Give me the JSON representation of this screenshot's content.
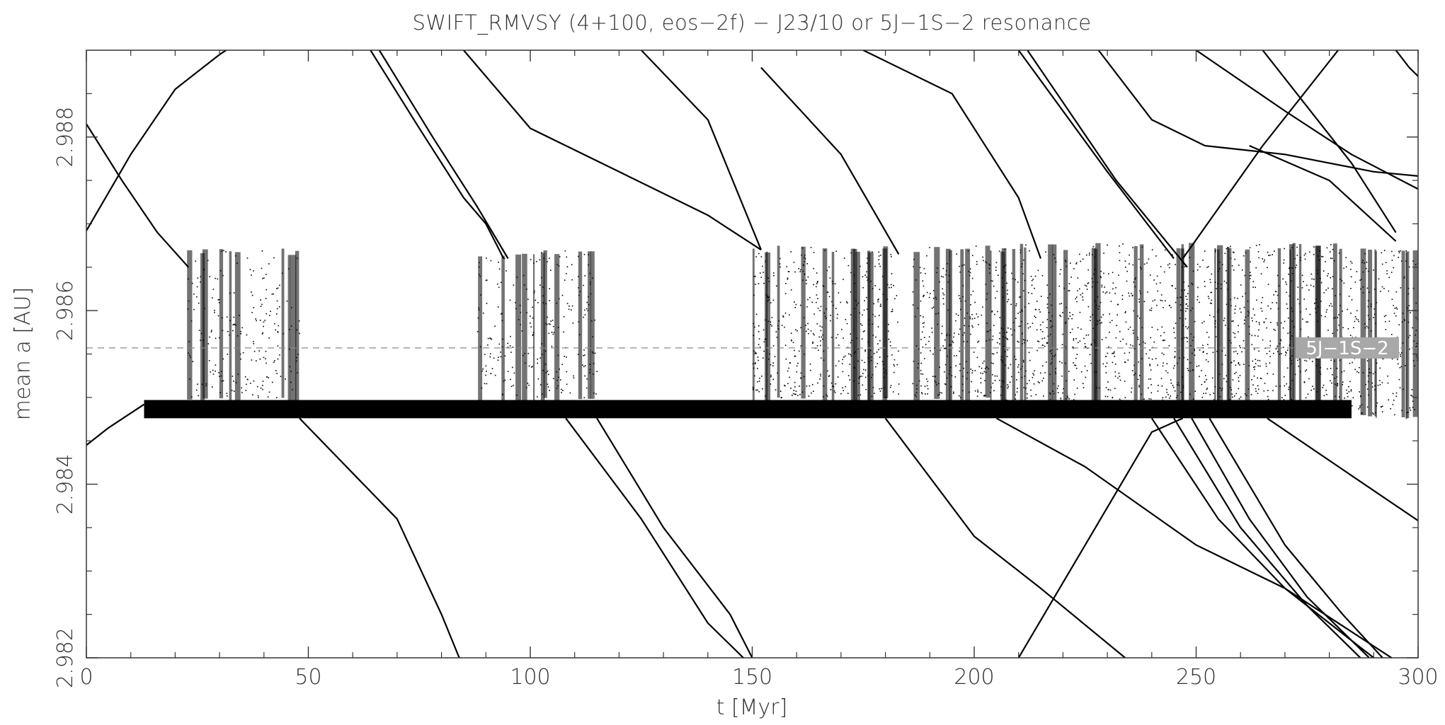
{
  "chart_data": {
    "type": "line",
    "title": "SWIFT_RMVSY (4+100, eos−2f) − J23/10 or 5J−1S−2 resonance",
    "xlabel": "t [Myr]",
    "ylabel": "mean a [AU]",
    "xlim": [
      0,
      300
    ],
    "ylim": [
      2.982,
      2.989
    ],
    "x_ticks": [
      0,
      50,
      100,
      150,
      200,
      250,
      300
    ],
    "x_tick_labels": [
      "0",
      "50",
      "100",
      "150",
      "200",
      "250",
      "300"
    ],
    "y_ticks": [
      2.982,
      2.984,
      2.986,
      2.988
    ],
    "y_tick_labels": [
      "2.982",
      "2.984",
      "2.986",
      "2.988"
    ],
    "grid": false,
    "legend": "none",
    "ink_color": "#000000",
    "resonance": {
      "label": "5J−1S−2",
      "a": 2.98557,
      "label_bg": "#a8a8a8"
    },
    "band": {
      "x_start": 13,
      "x_end": 285,
      "y_low": 2.98476,
      "y_high": 2.98497
    },
    "chaotic_zones": [
      {
        "x0": 22.5,
        "x1": 48,
        "y_top": 2.98672,
        "y_bottom": 2.985,
        "density": 0.45,
        "spikes": 10
      },
      {
        "x0": 88,
        "x1": 115,
        "y_top": 2.9867,
        "y_bottom": 2.985,
        "density": 0.5,
        "spikes": 11
      },
      {
        "x0": 150,
        "x1": 183,
        "y_top": 2.98675,
        "y_bottom": 2.985,
        "density": 0.75,
        "spikes": 14
      },
      {
        "x0": 186,
        "x1": 207,
        "y_top": 2.98675,
        "y_bottom": 2.985,
        "density": 0.8,
        "spikes": 10
      },
      {
        "x0": 207,
        "x1": 285,
        "y_top": 2.98678,
        "y_bottom": 2.9849,
        "density": 0.85,
        "spikes": 30
      },
      {
        "x0": 285,
        "x1": 300,
        "y_top": 2.98672,
        "y_bottom": 2.9848,
        "density": 0.8,
        "spikes": 8
      }
    ],
    "series": [
      {
        "x": [
          0,
          5,
          13
        ],
        "y": [
          2.98445,
          2.98465,
          2.98492
        ]
      },
      {
        "x": [
          0,
          10,
          20,
          30,
          31.5
        ],
        "y": [
          2.98692,
          2.9878,
          2.98855,
          2.98895,
          2.989
        ]
      },
      {
        "x": [
          0,
          8,
          16,
          23
        ],
        "y": [
          2.98815,
          2.9875,
          2.9869,
          2.9865
        ]
      },
      {
        "x": [
          48,
          70,
          80,
          84
        ],
        "y": [
          2.98476,
          2.9836,
          2.9825,
          2.982
        ]
      },
      {
        "x": [
          64,
          75,
          85,
          90,
          94
        ],
        "y": [
          2.989,
          2.9881,
          2.9873,
          2.987,
          2.9866
        ]
      },
      {
        "x": [
          66,
          78,
          88,
          95
        ],
        "y": [
          2.989,
          2.988,
          2.9872,
          2.9866
        ]
      },
      {
        "x": [
          85,
          100,
          120,
          140,
          152
        ],
        "y": [
          2.989,
          2.9881,
          2.9876,
          2.9871,
          2.9867
        ]
      },
      {
        "x": [
          125,
          140,
          152
        ],
        "y": [
          2.989,
          2.9882,
          2.9867
        ]
      },
      {
        "x": [
          108,
          125,
          140,
          148
        ],
        "y": [
          2.98476,
          2.9836,
          2.9824,
          2.982
        ]
      },
      {
        "x": [
          115,
          130,
          145,
          150
        ],
        "y": [
          2.98476,
          2.9835,
          2.9825,
          2.982
        ]
      },
      {
        "x": [
          152,
          170,
          183
        ],
        "y": [
          2.9888,
          2.9878,
          2.98665
        ]
      },
      {
        "x": [
          175,
          195,
          210,
          215
        ],
        "y": [
          2.989,
          2.9885,
          2.9873,
          2.9866
        ]
      },
      {
        "x": [
          180,
          200,
          215,
          234
        ],
        "y": [
          2.98476,
          2.9834,
          2.9828,
          2.982
        ]
      },
      {
        "x": [
          205,
          225,
          250,
          270,
          300
        ],
        "y": [
          2.98476,
          2.9842,
          2.9833,
          2.9828,
          2.9818
        ]
      },
      {
        "x": [
          210,
          225,
          240,
          247
        ],
        "y": [
          2.982,
          2.9833,
          2.9846,
          2.98476
        ]
      },
      {
        "x": [
          247,
          265,
          282
        ],
        "y": [
          2.9866,
          2.9879,
          2.989
        ]
      },
      {
        "x": [
          210,
          230,
          245
        ],
        "y": [
          2.989,
          2.9876,
          2.9866
        ]
      },
      {
        "x": [
          212,
          232,
          248
        ],
        "y": [
          2.989,
          2.9875,
          2.9865
        ]
      },
      {
        "x": [
          228,
          240,
          252
        ],
        "y": [
          2.989,
          2.9882,
          2.9879
        ]
      },
      {
        "x": [
          252,
          270,
          290,
          300
        ],
        "y": [
          2.9879,
          2.9878,
          2.9876,
          2.98755
        ]
      },
      {
        "x": [
          240,
          255,
          270,
          285,
          290
        ],
        "y": [
          2.98476,
          2.9836,
          2.9828,
          2.9822,
          2.982
        ]
      },
      {
        "x": [
          245,
          260,
          275,
          287
        ],
        "y": [
          2.98476,
          2.9835,
          2.9826,
          2.982
        ]
      },
      {
        "x": [
          249,
          262,
          275,
          289
        ],
        "y": [
          2.98476,
          2.9836,
          2.9827,
          2.982
        ]
      },
      {
        "x": [
          253,
          270,
          283,
          292
        ],
        "y": [
          2.98476,
          2.9833,
          2.9825,
          2.982
        ]
      },
      {
        "x": [
          266,
          285,
          300
        ],
        "y": [
          2.98476,
          2.9841,
          2.98358
        ]
      },
      {
        "x": [
          250,
          270,
          285,
          300
        ],
        "y": [
          2.989,
          2.9883,
          2.9878,
          2.9874
        ]
      },
      {
        "x": [
          265,
          285,
          295
        ],
        "y": [
          2.989,
          2.9877,
          2.9869
        ]
      },
      {
        "x": [
          262,
          280,
          295
        ],
        "y": [
          2.9879,
          2.9875,
          2.9868
        ]
      },
      {
        "x": [
          295,
          298,
          300
        ],
        "y": [
          2.989,
          2.9888,
          2.9887
        ]
      }
    ]
  }
}
